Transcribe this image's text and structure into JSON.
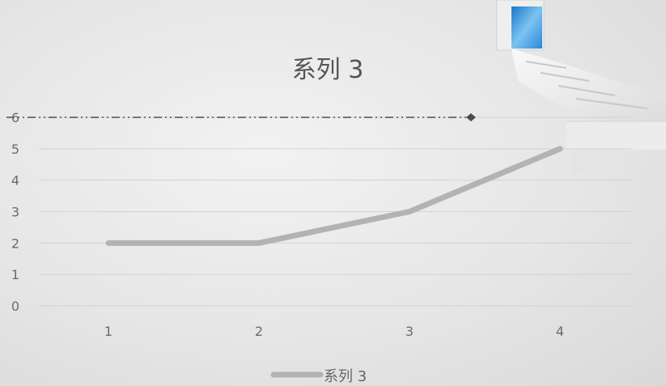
{
  "chart_data": {
    "type": "line",
    "title": "系列 3",
    "x": [
      1,
      2,
      3,
      4
    ],
    "categories": [
      "1",
      "2",
      "3",
      "4"
    ],
    "series": [
      {
        "name": "系列 3",
        "values": [
          2,
          2,
          3,
          5
        ]
      }
    ],
    "yticks": [
      "0",
      "1",
      "2",
      "3",
      "4",
      "5",
      "6"
    ],
    "ylim": [
      0,
      6
    ],
    "grid": true,
    "legend": "bottom",
    "reference_line": {
      "y": 6,
      "style": "dash-dot"
    },
    "colors": {
      "series": "#b3b3b3",
      "reference": "#4d4d4d",
      "grid": "#d2d2d2"
    }
  }
}
